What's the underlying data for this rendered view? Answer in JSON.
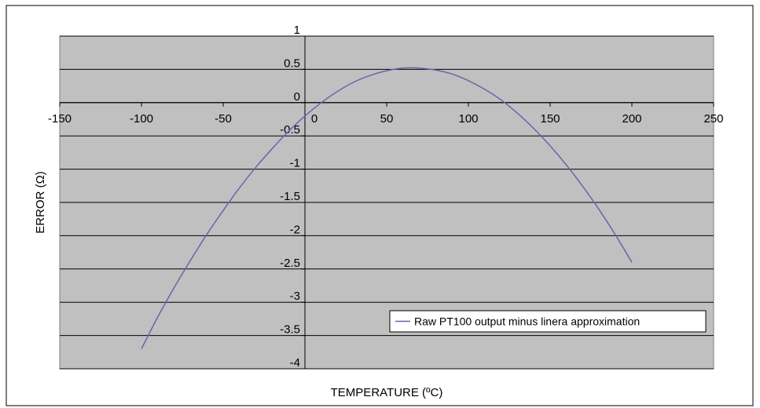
{
  "chart_data": {
    "type": "line",
    "title": "",
    "xlabel": "TEMPERATURE (ºC)",
    "ylabel": "ERROR (Ω)",
    "xlim": [
      -150,
      250
    ],
    "ylim": [
      -4,
      1
    ],
    "x_ticks": [
      "-150",
      "-100",
      "-50",
      "0",
      "50",
      "100",
      "150",
      "200",
      "250"
    ],
    "y_ticks": [
      "1",
      "0.5",
      "0",
      "-0.5",
      "-1",
      "-1.5",
      "-2",
      "-2.5",
      "-3",
      "-3.5",
      "-4"
    ],
    "grid": "horizontal",
    "legend_position": "bottom-right",
    "series": [
      {
        "name": "Raw PT100 output minus linera approximation",
        "color": "#6666aa",
        "x": [
          -100,
          -90,
          -80,
          -70,
          -60,
          -50,
          -40,
          -30,
          -20,
          -10,
          0,
          10,
          20,
          30,
          40,
          50,
          60,
          70,
          80,
          90,
          100,
          110,
          120,
          130,
          140,
          150,
          160,
          170,
          180,
          190,
          200
        ],
        "y": [
          -3.7,
          -3.22,
          -2.78,
          -2.37,
          -1.98,
          -1.62,
          -1.28,
          -0.97,
          -0.69,
          -0.43,
          -0.2,
          0.0,
          0.17,
          0.31,
          0.41,
          0.48,
          0.52,
          0.52,
          0.49,
          0.43,
          0.33,
          0.2,
          0.04,
          -0.16,
          -0.39,
          -0.65,
          -0.94,
          -1.26,
          -1.61,
          -1.99,
          -2.4
        ]
      }
    ],
    "plot_background": "#c0c0c0",
    "gridline_color": "#000000"
  }
}
